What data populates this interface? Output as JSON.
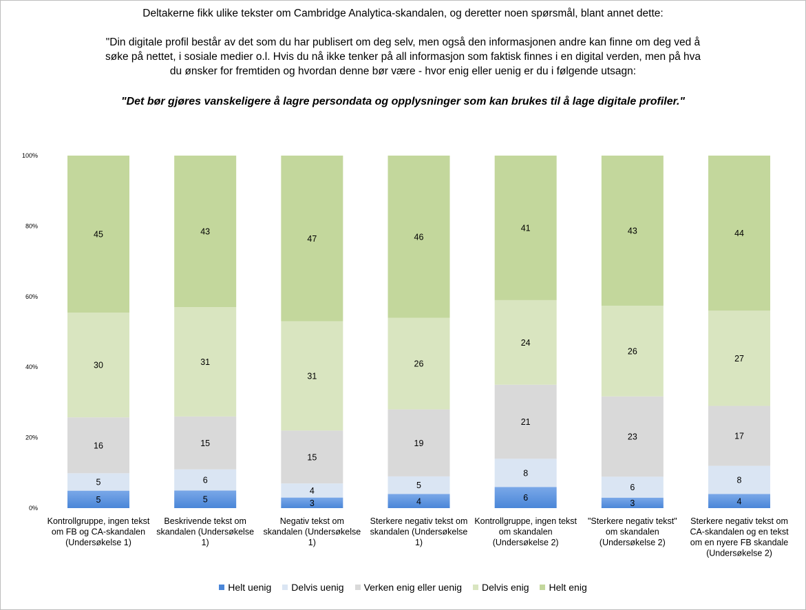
{
  "header": {
    "intro": "Deltakerne fikk ulike tekster om Cambridge Analytica-skandalen, og deretter noen spørsmål, blant annet dette:",
    "question_lines": [
      "\"Din digitale profil består av det som du har publisert om deg selv, men også den informasjonen andre kan finne om deg ved å",
      "søke på nettet, i sosiale medier o.l.  Hvis du nå ikke tenker på all informasjon som faktisk finnes i en digital verden, men på hva",
      "du ønsker for fremtiden og hvordan denne bør være - hvor enig eller uenig er du i følgende utsagn:"
    ],
    "statement": "\"Det bør gjøres vanskeligere å lagre persondata og opplysninger som kan brukes til å lage digitale profiler.\""
  },
  "chart_data": {
    "type": "bar",
    "stacked": true,
    "percent_stacked": true,
    "ylim": [
      0,
      100
    ],
    "ytick_labels": [
      "0%",
      "20%",
      "40%",
      "60%",
      "80%",
      "100%"
    ],
    "grid": false,
    "legend_position": "bottom",
    "categories": [
      [
        "Kontrollgruppe, ingen tekst",
        "om FB og CA-skandalen",
        "(Undersøkelse 1)"
      ],
      [
        "Beskrivende tekst om",
        "skandalen (Undersøkelse",
        "1)"
      ],
      [
        "Negativ tekst om",
        "skandalen (Undersøkelse",
        "1)"
      ],
      [
        "Sterkere negativ tekst om",
        "skandalen (Undersøkelse",
        "1)"
      ],
      [
        "Kontrollgruppe, ingen tekst",
        "om skandalen",
        "(Undersøkelse 2)"
      ],
      [
        "\"Sterkere negativ tekst\"",
        "om skandalen",
        "(Undersøkelse 2)"
      ],
      [
        "Sterkere negativ tekst om",
        "CA-skandalen og en tekst",
        "om en nyere FB skandale",
        "(Undersøkelse 2)"
      ]
    ],
    "series": [
      {
        "name": "Helt uenig",
        "color": "#4a86d8",
        "values": [
          5,
          5,
          3,
          4,
          6,
          3,
          4
        ]
      },
      {
        "name": "Delvis uenig",
        "color": "#dae5f3",
        "values": [
          5,
          6,
          4,
          5,
          8,
          6,
          8
        ]
      },
      {
        "name": "Verken enig eller uenig",
        "color": "#d9d9d9",
        "values": [
          16,
          15,
          15,
          19,
          21,
          23,
          17
        ]
      },
      {
        "name": "Delvis enig",
        "color": "#d9e5c0",
        "values": [
          30,
          31,
          31,
          26,
          24,
          26,
          27
        ]
      },
      {
        "name": "Helt enig",
        "color": "#c3d79c",
        "values": [
          45,
          43,
          47,
          46,
          41,
          43,
          44
        ]
      }
    ]
  }
}
